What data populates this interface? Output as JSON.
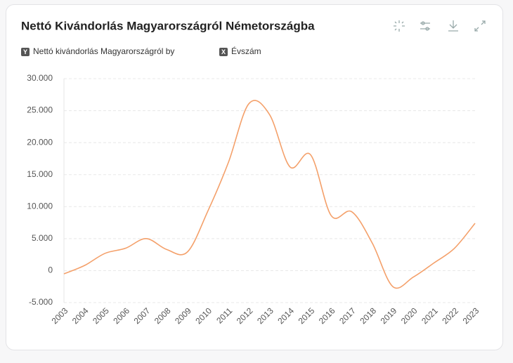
{
  "chart_data": {
    "type": "line",
    "title": "Nettó Kivándorlás Magyarországról Németországba",
    "y_badge": "Y",
    "y_label": "Nettó kivándorlás Magyarországról by",
    "x_badge": "X",
    "x_label": "Évszám",
    "categories": [
      "2003",
      "2004",
      "2005",
      "2006",
      "2007",
      "2008",
      "2009",
      "2010",
      "2011",
      "2012",
      "2013",
      "2014",
      "2015",
      "2016",
      "2017",
      "2018",
      "2019",
      "2020",
      "2021",
      "2022",
      "2023"
    ],
    "series": [
      {
        "color": "#f4a06a",
        "values": [
          -500,
          800,
          2700,
          3500,
          5000,
          3300,
          2900,
          9300,
          16900,
          26100,
          24400,
          16200,
          18100,
          8600,
          9200,
          4300,
          -2500,
          -1000,
          1200,
          3500,
          7400
        ]
      }
    ],
    "ylim": [
      -5000,
      30000
    ],
    "yticks": [
      {
        "value": -5000,
        "label": "-5.000"
      },
      0,
      {
        "value": 5000,
        "label": "5.000"
      },
      {
        "value": 10000,
        "label": "10.000"
      },
      {
        "value": 15000,
        "label": "15.000"
      },
      {
        "value": 20000,
        "label": "20.000"
      },
      {
        "value": 25000,
        "label": "25.000"
      },
      {
        "value": 30000,
        "label": "30.000"
      }
    ],
    "grid": true
  }
}
